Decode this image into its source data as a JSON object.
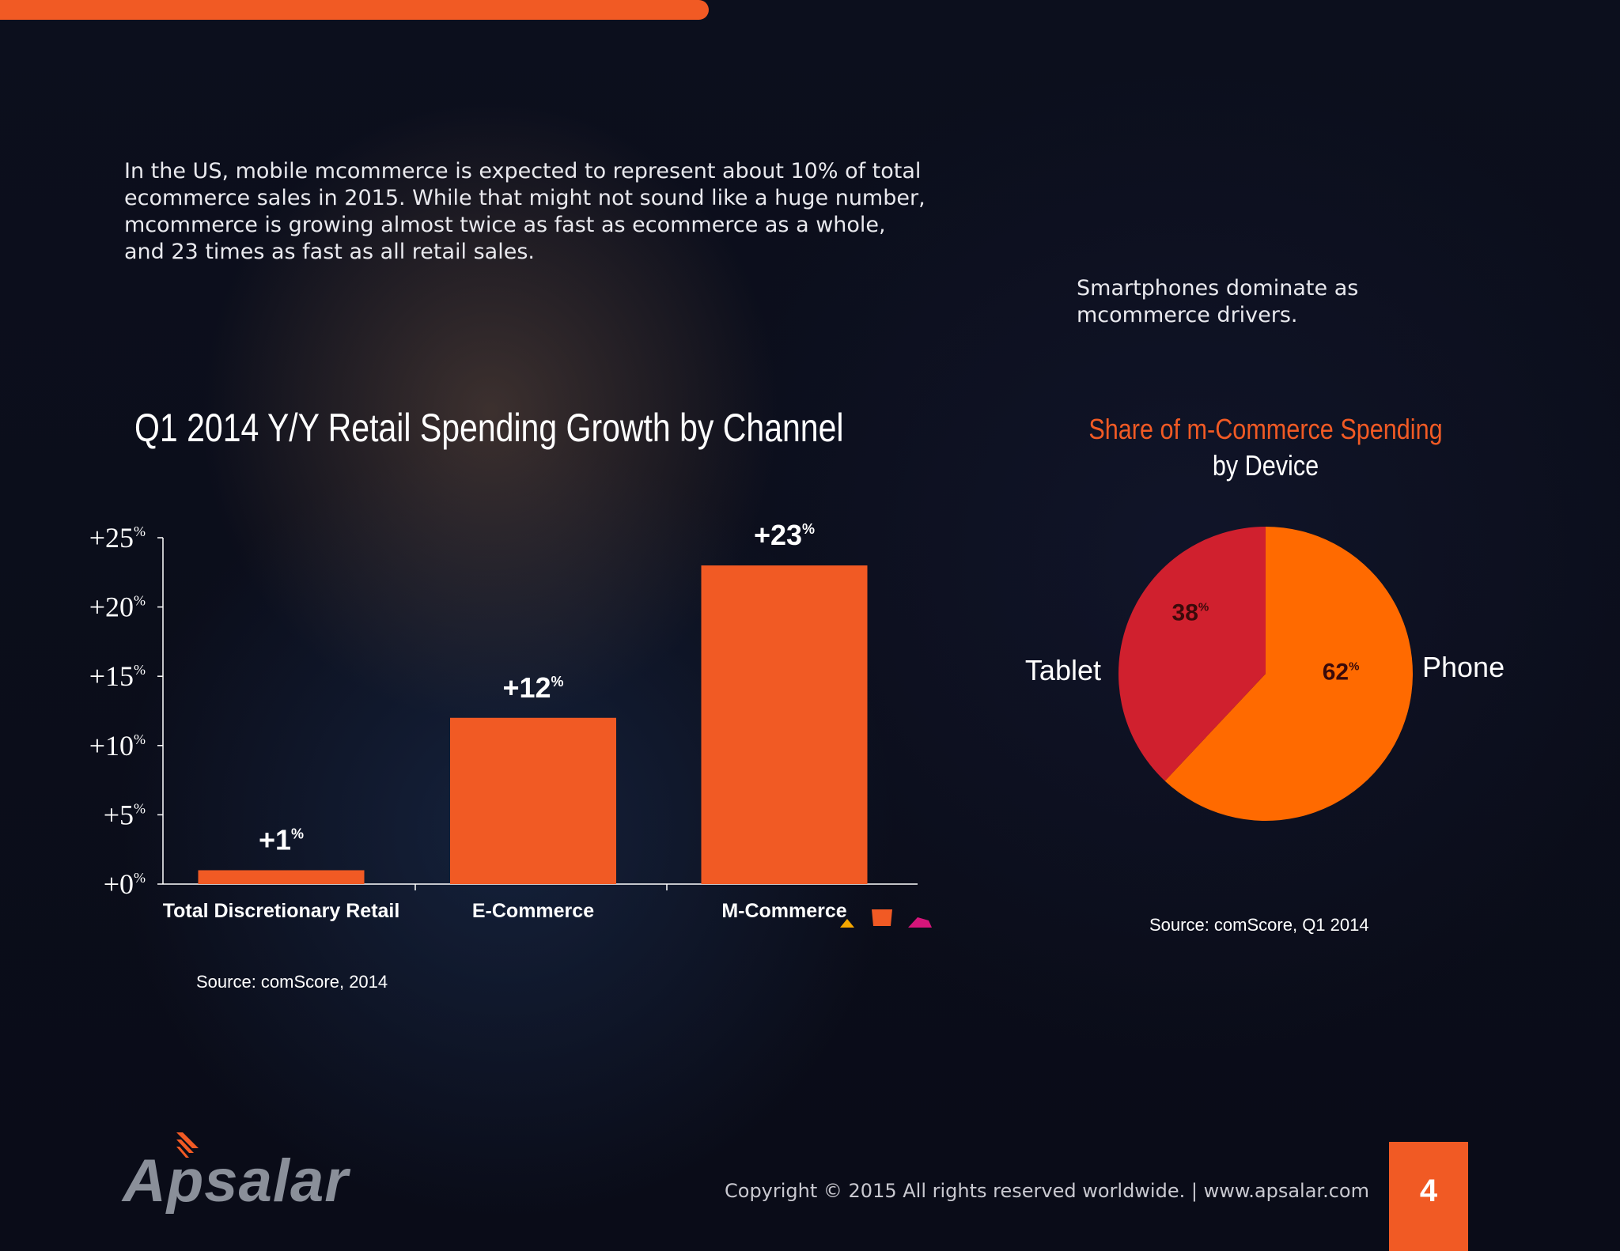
{
  "intro_text": "In the US, mobile mcommerce is expected to represent about 10% of total ecommerce sales in 2015. While that might not sound like a huge number, mcommerce is growing almost twice as fast as ecommerce as a whole, and 23 times as fast as all retail sales.",
  "side_note": "Smartphones dominate as mcommerce drivers.",
  "footer": {
    "copyright": "Copyright © 2015 All rights reserved worldwide. | www.apsalar.com",
    "page_number": "4",
    "logo_text": "Apsalar"
  },
  "colors": {
    "accent": "#f15a24",
    "bar": "#f15a24",
    "pie_phone": "#ff6a00",
    "pie_tablet": "#d0202e",
    "pie_label_dark": "#3a0a0a"
  },
  "chart_data": [
    {
      "type": "bar",
      "title": "Q1 2014 Y/Y Retail Spending Growth by Channel",
      "categories": [
        "Total Discretionary Retail",
        "E-Commerce",
        "M-Commerce"
      ],
      "values": [
        1,
        12,
        23
      ],
      "value_labels": [
        "+1",
        "+12",
        "+23"
      ],
      "unit_suffix": "%",
      "ylim": [
        0,
        25
      ],
      "yticks": [
        0,
        5,
        10,
        15,
        20,
        25
      ],
      "ytick_labels": [
        "+0",
        "+5",
        "+10",
        "+15",
        "+20",
        "+25"
      ],
      "xlabel": "",
      "ylabel": "",
      "source": "Source: comScore, 2014"
    },
    {
      "type": "pie",
      "title_line1": "Share of m-Commerce Spending",
      "title_line2": "by Device",
      "categories": [
        "Phone",
        "Tablet"
      ],
      "values": [
        62,
        38
      ],
      "value_labels": [
        "62",
        "38"
      ],
      "unit_suffix": "%",
      "source": "Source: comScore, Q1 2014"
    }
  ]
}
